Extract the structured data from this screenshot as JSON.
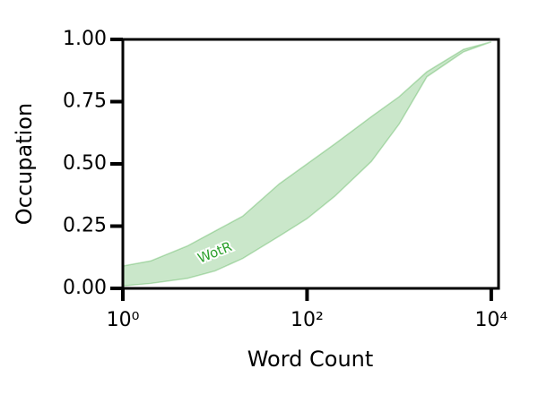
{
  "chart_data": {
    "type": "band",
    "x_label": "Word Count",
    "y_label": "Occupation",
    "log_x": true,
    "x": [
      1,
      2,
      5,
      10,
      20,
      50,
      100,
      200,
      500,
      1000,
      2000,
      5000,
      10000
    ],
    "series": [
      {
        "name": "WotR",
        "color": "#2ca02c",
        "upper": [
          0.09,
          0.11,
          0.17,
          0.23,
          0.29,
          0.42,
          0.5,
          0.58,
          0.69,
          0.77,
          0.87,
          0.96,
          0.99
        ],
        "lower": [
          0.01,
          0.02,
          0.04,
          0.07,
          0.12,
          0.21,
          0.28,
          0.37,
          0.51,
          0.66,
          0.85,
          0.95,
          0.99
        ]
      }
    ],
    "xlim": [
      1,
      12000
    ],
    "ylim": [
      0,
      1
    ],
    "xticks": [
      {
        "value": 1,
        "label": "10⁰"
      },
      {
        "value": 100,
        "label": "10²"
      },
      {
        "value": 10000,
        "label": "10⁴"
      }
    ],
    "yticks": [
      {
        "value": 0,
        "label": "0.00"
      },
      {
        "value": 0.25,
        "label": "0.25"
      },
      {
        "value": 0.5,
        "label": "0.50"
      },
      {
        "value": 0.75,
        "label": "0.75"
      },
      {
        "value": 1,
        "label": "1.00"
      }
    ]
  }
}
